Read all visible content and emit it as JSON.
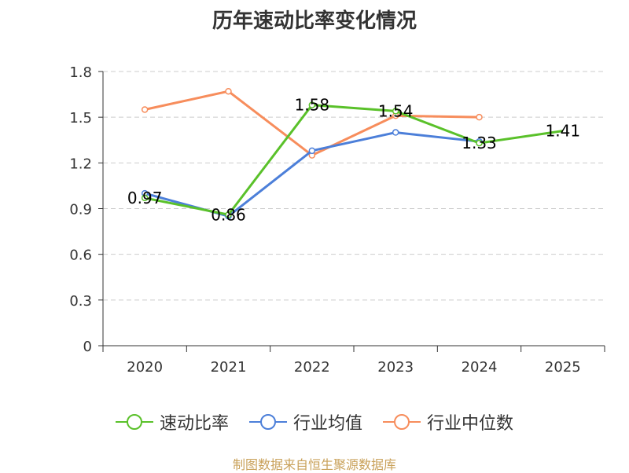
{
  "chart_data": {
    "type": "line",
    "title": "历年速动比率变化情况",
    "categories": [
      "2020",
      "2021",
      "2022",
      "2023",
      "2024",
      "2025"
    ],
    "ylim": [
      0,
      1.8
    ],
    "yticks": [
      "0",
      "0.3",
      "0.6",
      "0.9",
      "1.2",
      "1.5",
      "1.8"
    ],
    "grid": true,
    "legend_position": "bottom",
    "series": [
      {
        "name": "速动比率",
        "color": "#5ac12a",
        "values": [
          0.97,
          0.86,
          1.58,
          1.54,
          1.33,
          1.41
        ],
        "labels": [
          "0.97",
          "0.86",
          "1.58",
          "1.54",
          "1.33",
          "1.41"
        ],
        "show_labels": true
      },
      {
        "name": "行业均值",
        "color": "#4c7fd9",
        "values": [
          1.0,
          0.85,
          1.28,
          1.4,
          1.34,
          null
        ],
        "show_labels": false
      },
      {
        "name": "行业中位数",
        "color": "#f78d5c",
        "values": [
          1.55,
          1.67,
          1.25,
          1.51,
          1.5,
          null
        ],
        "show_labels": false
      }
    ]
  },
  "source": "制图数据来自恒生聚源数据库"
}
